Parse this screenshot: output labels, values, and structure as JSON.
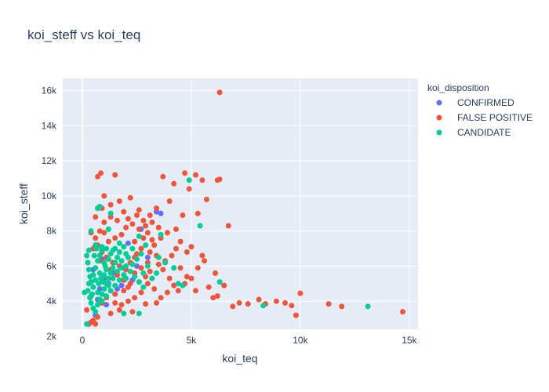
{
  "chart_data": {
    "type": "scatter",
    "title": "koi_steff vs koi_teq",
    "xlabel": "koi_teq",
    "ylabel": "koi_steff",
    "xlim": [
      -900,
      15400
    ],
    "ylim": [
      2400,
      16700
    ],
    "x_ticks": [
      0,
      5000,
      10000,
      15000
    ],
    "x_tick_labels": [
      "0",
      "5k",
      "10k",
      "15k"
    ],
    "y_ticks": [
      2000,
      4000,
      6000,
      8000,
      10000,
      12000,
      14000,
      16000
    ],
    "y_tick_labels": [
      "2k",
      "4k",
      "6k",
      "8k",
      "10k",
      "12k",
      "14k",
      "16k"
    ],
    "grid": true,
    "legend_title": "koi_disposition",
    "legend_position": "right",
    "series": [
      {
        "name": "CONFIRMED",
        "color": "#636efa",
        "points": [
          [
            600,
            3200
          ],
          [
            800,
            4700
          ],
          [
            1200,
            5000
          ],
          [
            1600,
            4700
          ],
          [
            2300,
            5200
          ],
          [
            3400,
            9100
          ],
          [
            3600,
            9000
          ],
          [
            2100,
            7300
          ],
          [
            2700,
            8100
          ],
          [
            500,
            5800
          ],
          [
            900,
            6400
          ],
          [
            1400,
            5600
          ],
          [
            1900,
            5900
          ],
          [
            700,
            4100
          ],
          [
            1100,
            3800
          ],
          [
            1800,
            4900
          ],
          [
            2500,
            6000
          ],
          [
            3000,
            6500
          ],
          [
            400,
            4300
          ],
          [
            1000,
            5300
          ]
        ]
      },
      {
        "name": "FALSE POSITIVE",
        "color": "#ef553b",
        "points": [
          [
            6300,
            15900
          ],
          [
            700,
            11100
          ],
          [
            850,
            11300
          ],
          [
            1500,
            11200
          ],
          [
            3700,
            11100
          ],
          [
            4700,
            11300
          ],
          [
            5200,
            11200
          ],
          [
            5500,
            10900
          ],
          [
            6200,
            10900
          ],
          [
            6300,
            10950
          ],
          [
            4200,
            10700
          ],
          [
            4900,
            10400
          ],
          [
            5700,
            9800
          ],
          [
            5300,
            9000
          ],
          [
            3400,
            9300
          ],
          [
            2600,
            9200
          ],
          [
            1700,
            9700
          ],
          [
            2200,
            9900
          ],
          [
            1000,
            10000
          ],
          [
            1300,
            9500
          ],
          [
            900,
            9300
          ],
          [
            4000,
            9700
          ],
          [
            4600,
            8900
          ],
          [
            6700,
            8300
          ],
          [
            5000,
            7100
          ],
          [
            4800,
            6800
          ],
          [
            5500,
            6600
          ],
          [
            4500,
            5900
          ],
          [
            4800,
            5400
          ],
          [
            5800,
            4800
          ],
          [
            6100,
            5600
          ],
          [
            6500,
            4900
          ],
          [
            6000,
            4200
          ],
          [
            5200,
            4600
          ],
          [
            6200,
            4300
          ],
          [
            7200,
            3900
          ],
          [
            7600,
            3850
          ],
          [
            8100,
            4100
          ],
          [
            8400,
            3850
          ],
          [
            8900,
            4000
          ],
          [
            9300,
            3900
          ],
          [
            9600,
            3750
          ],
          [
            9800,
            3200
          ],
          [
            10000,
            4450
          ],
          [
            11300,
            3850
          ],
          [
            11900,
            3700
          ],
          [
            14700,
            3400
          ],
          [
            6900,
            3700
          ],
          [
            3400,
            3900
          ],
          [
            2900,
            3850
          ],
          [
            2300,
            3400
          ],
          [
            1700,
            3500
          ],
          [
            1300,
            3300
          ],
          [
            700,
            3100
          ],
          [
            500,
            2900
          ],
          [
            300,
            2700
          ],
          [
            400,
            2800
          ],
          [
            600,
            2700
          ],
          [
            200,
            3500
          ],
          [
            900,
            3900
          ],
          [
            1100,
            4200
          ],
          [
            1500,
            4400
          ],
          [
            1900,
            4600
          ],
          [
            2100,
            4800
          ],
          [
            2600,
            5100
          ],
          [
            2900,
            5400
          ],
          [
            3100,
            5700
          ],
          [
            3500,
            6100
          ],
          [
            3800,
            6300
          ],
          [
            4100,
            6600
          ],
          [
            2500,
            6700
          ],
          [
            2700,
            7000
          ],
          [
            2400,
            7400
          ],
          [
            2800,
            7600
          ],
          [
            3000,
            7900
          ],
          [
            2600,
            8100
          ],
          [
            2900,
            8300
          ],
          [
            3200,
            8500
          ],
          [
            2300,
            8400
          ],
          [
            2000,
            8200
          ],
          [
            1800,
            7800
          ],
          [
            1500,
            7600
          ],
          [
            1200,
            7400
          ],
          [
            1000,
            7900
          ],
          [
            800,
            8000
          ],
          [
            600,
            7600
          ],
          [
            700,
            7200
          ],
          [
            900,
            6800
          ],
          [
            1100,
            6500
          ],
          [
            1400,
            6200
          ],
          [
            1700,
            6000
          ],
          [
            2000,
            5800
          ],
          [
            2200,
            6200
          ],
          [
            2400,
            6500
          ],
          [
            3300,
            7200
          ],
          [
            3600,
            7600
          ],
          [
            3900,
            7900
          ],
          [
            4300,
            8100
          ],
          [
            3100,
            6800
          ],
          [
            3400,
            6600
          ],
          [
            3700,
            5800
          ],
          [
            4000,
            5300
          ],
          [
            4200,
            4900
          ],
          [
            3900,
            4500
          ],
          [
            3600,
            4200
          ],
          [
            3300,
            4700
          ],
          [
            3000,
            5000
          ],
          [
            2700,
            4500
          ],
          [
            2400,
            4200
          ],
          [
            2100,
            4000
          ],
          [
            1800,
            3800
          ],
          [
            1500,
            3900
          ],
          [
            4400,
            4600
          ],
          [
            4700,
            5000
          ],
          [
            5000,
            5300
          ],
          [
            5300,
            5900
          ],
          [
            5600,
            6300
          ],
          [
            4500,
            7400
          ],
          [
            4300,
            7000
          ],
          [
            2500,
            8900
          ],
          [
            2100,
            8700
          ],
          [
            1900,
            9100
          ],
          [
            2800,
            8600
          ],
          [
            3100,
            8900
          ],
          [
            1600,
            8600
          ],
          [
            1300,
            8800
          ],
          [
            1000,
            8500
          ],
          [
            600,
            8800
          ],
          [
            400,
            7900
          ],
          [
            500,
            7000
          ],
          [
            800,
            6300
          ],
          [
            1300,
            5800
          ],
          [
            1600,
            5500
          ],
          [
            1900,
            5200
          ],
          [
            2200,
            5000
          ],
          [
            2400,
            5600
          ],
          [
            2700,
            5900
          ],
          [
            3000,
            6200
          ],
          [
            3200,
            7500
          ],
          [
            3500,
            8200
          ]
        ]
      },
      {
        "name": "CANDIDATE",
        "color": "#00cc96",
        "points": [
          [
            4900,
            10900
          ],
          [
            5400,
            8300
          ],
          [
            6300,
            5100
          ],
          [
            8300,
            3750
          ],
          [
            13100,
            3700
          ],
          [
            1900,
            3300
          ],
          [
            2600,
            3300
          ],
          [
            200,
            2700
          ],
          [
            100,
            4500
          ],
          [
            3400,
            5600
          ],
          [
            3800,
            6200
          ],
          [
            4200,
            5900
          ],
          [
            4600,
            4900
          ],
          [
            800,
            9400
          ],
          [
            700,
            9300
          ],
          [
            1300,
            9000
          ],
          [
            2600,
            7700
          ],
          [
            2900,
            7200
          ],
          [
            1200,
            8100
          ],
          [
            400,
            8000
          ],
          [
            3600,
            7800
          ],
          [
            2300,
            7000
          ],
          [
            2000,
            6700
          ],
          [
            1700,
            6800
          ],
          [
            1400,
            6900
          ],
          [
            1100,
            7000
          ],
          [
            900,
            7100
          ],
          [
            600,
            7200
          ],
          [
            300,
            6900
          ],
          [
            200,
            6600
          ],
          [
            250,
            6200
          ],
          [
            300,
            5800
          ],
          [
            350,
            5400
          ],
          [
            300,
            5000
          ],
          [
            250,
            4600
          ],
          [
            350,
            4200
          ],
          [
            400,
            3900
          ],
          [
            500,
            3600
          ],
          [
            600,
            3400
          ],
          [
            700,
            3800
          ],
          [
            800,
            4100
          ],
          [
            900,
            4400
          ],
          [
            1000,
            4700
          ],
          [
            1100,
            5000
          ],
          [
            1200,
            5300
          ],
          [
            1300,
            5600
          ],
          [
            1400,
            5900
          ],
          [
            1500,
            6200
          ],
          [
            1600,
            6500
          ],
          [
            1800,
            6300
          ],
          [
            2000,
            6000
          ],
          [
            2200,
            5700
          ],
          [
            2400,
            5400
          ],
          [
            2600,
            5100
          ],
          [
            2800,
            4800
          ],
          [
            1900,
            5500
          ],
          [
            1700,
            5200
          ],
          [
            1500,
            4900
          ],
          [
            1300,
            4600
          ],
          [
            1100,
            4300
          ],
          [
            900,
            4000
          ],
          [
            700,
            4500
          ],
          [
            500,
            4800
          ],
          [
            400,
            5100
          ],
          [
            500,
            5500
          ],
          [
            600,
            5900
          ],
          [
            700,
            6300
          ],
          [
            800,
            6600
          ],
          [
            900,
            6900
          ],
          [
            1000,
            6200
          ],
          [
            1100,
            5800
          ],
          [
            1200,
            6400
          ],
          [
            1300,
            6700
          ],
          [
            1500,
            7000
          ],
          [
            1700,
            7300
          ],
          [
            2100,
            6500
          ],
          [
            2300,
            6100
          ],
          [
            2500,
            6400
          ],
          [
            2700,
            6700
          ],
          [
            1900,
            7100
          ],
          [
            600,
            5200
          ],
          [
            800,
            5600
          ],
          [
            1000,
            5500
          ],
          [
            1200,
            4900
          ],
          [
            1400,
            5300
          ],
          [
            1600,
            5700
          ],
          [
            1800,
            5900
          ],
          [
            2000,
            5300
          ],
          [
            450,
            4400
          ],
          [
            550,
            6600
          ],
          [
            650,
            7000
          ],
          [
            750,
            5000
          ],
          [
            850,
            5300
          ],
          [
            950,
            5100
          ],
          [
            1050,
            6000
          ],
          [
            3200,
            5300
          ],
          [
            3500,
            6500
          ],
          [
            4400,
            5000
          ],
          [
            2800,
            5600
          ],
          [
            3000,
            6000
          ]
        ]
      }
    ]
  }
}
